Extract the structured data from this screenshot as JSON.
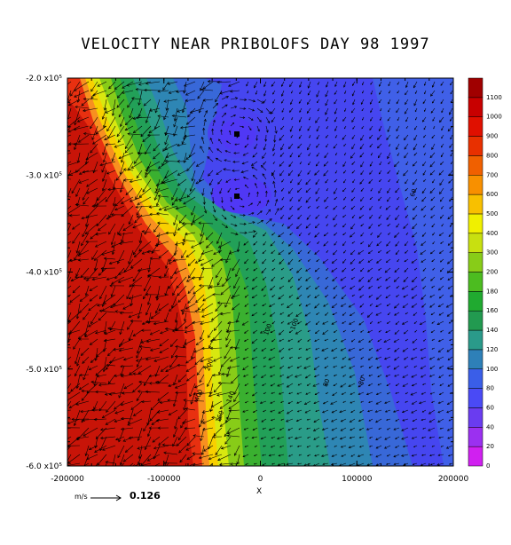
{
  "chart_data": {
    "type": "heatmap",
    "title": "VELOCITY NEAR PRIBOLOFS  DAY 98 1997",
    "xlabel": "X",
    "ylabel": "",
    "xlim": [
      -200000,
      200000
    ],
    "ylim": [
      -600000,
      -200000
    ],
    "x_ticks": [
      "-200000",
      "-100000",
      "0",
      "100000",
      "200000"
    ],
    "x_tick_values": [
      -200000,
      -100000,
      0,
      100000,
      200000
    ],
    "y_ticks": [
      "-2.0 x10⁵",
      "-3.0 x10⁵",
      "-4.0 x10⁵",
      "-5.0 x10⁵",
      "-6.0 x10⁵"
    ],
    "y_tick_values": [
      -200000,
      -300000,
      -400000,
      -500000,
      -600000
    ],
    "colorbar": {
      "ticks": [
        "0",
        "20",
        "40",
        "60",
        "80",
        "100",
        "120",
        "140",
        "160",
        "180",
        "200",
        "300",
        "400",
        "500",
        "600",
        "700",
        "800",
        "900",
        "1000",
        "1100"
      ],
      "colors": [
        "#d020f0",
        "#9b30f0",
        "#6a3cf0",
        "#4a4af5",
        "#3a5ee8",
        "#2e80b8",
        "#2a9a8a",
        "#229a50",
        "#20aa30",
        "#4cbc20",
        "#88cc18",
        "#c8e010",
        "#f0f000",
        "#f8c000",
        "#f89000",
        "#f06000",
        "#e83000",
        "#e01000",
        "#c80000",
        "#a00000"
      ]
    },
    "contour_labels": [
      "60",
      "80",
      "80",
      "100",
      "100",
      "140",
      "160",
      "200",
      "400"
    ],
    "reference_vector": {
      "units": "m/s",
      "value": "0.126"
    }
  }
}
